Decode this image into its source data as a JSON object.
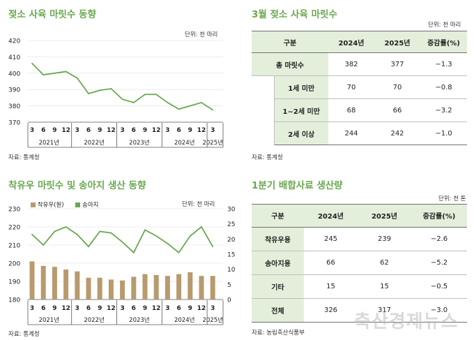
{
  "chart1": {
    "title": "젖소 사육 마릿수 동향",
    "unit": "단위: 천 마리",
    "source": "자료: 통계청",
    "chart_data": {
      "type": "line",
      "x_ticks": [
        "3",
        "6",
        "9",
        "12",
        "3",
        "6",
        "9",
        "12",
        "3",
        "6",
        "9",
        "12",
        "3",
        "6",
        "9",
        "12",
        "3"
      ],
      "year_labels": [
        "2021년",
        "2022년",
        "2023년",
        "2024년",
        "2025년"
      ],
      "year_groups": [
        4,
        4,
        4,
        4,
        1
      ],
      "ylim": [
        370,
        420
      ],
      "y_ticks": [
        370,
        380,
        390,
        400,
        410,
        420
      ],
      "values": [
        406,
        399,
        400,
        401,
        397,
        387.5,
        389.5,
        390.5,
        384,
        382,
        387,
        387,
        382,
        378,
        380,
        382,
        377.5
      ],
      "color": "#6aa84f"
    }
  },
  "chart2": {
    "title": "착유우 마릿수 및 송아지 생산 동향",
    "unit": "단위: 천 마리",
    "source": "자료: 통계청",
    "legend": [
      "착유우(원)",
      "송아지"
    ],
    "chart_data": {
      "type": "bar",
      "x_ticks": [
        "3",
        "6",
        "9",
        "12",
        "3",
        "6",
        "9",
        "12",
        "3",
        "6",
        "9",
        "12",
        "3",
        "6",
        "9",
        "12",
        "3"
      ],
      "year_labels": [
        "2021년",
        "2022년",
        "2023년",
        "2024년",
        "2025년"
      ],
      "year_groups": [
        4,
        4,
        4,
        4,
        1
      ],
      "left_ylim": [
        180,
        230
      ],
      "left_y_ticks": [
        180,
        190,
        200,
        210,
        220,
        230
      ],
      "right_ylim": [
        0,
        30
      ],
      "right_y_ticks": [
        0,
        5,
        10,
        15,
        20,
        25,
        30
      ],
      "series": [
        {
          "name": "착유우(원)",
          "type": "bar",
          "axis": "left",
          "color": "#b89a6e",
          "values": [
            201,
            198.5,
            198,
            196.5,
            195.5,
            192,
            192,
            191,
            190.5,
            192.5,
            194,
            193.5,
            193,
            194,
            195,
            193,
            193
          ]
        },
        {
          "name": "송아지",
          "type": "line",
          "axis": "right",
          "color": "#6aa84f",
          "values": [
            21.5,
            18,
            22.5,
            24,
            21.5,
            17.5,
            22.5,
            22,
            19,
            15.5,
            23,
            21,
            18.5,
            15.5,
            21,
            24,
            17.5
          ]
        }
      ]
    }
  },
  "table1": {
    "title": "3월 젖소 사육 마릿수",
    "unit": "단위: 천 마리",
    "source": "자료: 통계청",
    "headers": [
      "구분",
      "2024년",
      "2025년",
      "증감률(%)"
    ],
    "rows": [
      [
        "총 마릿수",
        "382",
        "377",
        "−1.3"
      ],
      [
        "1세 미만",
        "70",
        "70",
        "−0.8"
      ],
      [
        "1~2세 미만",
        "68",
        "66",
        "−3.2"
      ],
      [
        "2세 이상",
        "244",
        "242",
        "−1.0"
      ]
    ]
  },
  "table2": {
    "title": "1분기 배합사료 생산량",
    "unit": "단위: 천 톤",
    "source": "자료: 농림축산식품부",
    "headers": [
      "구분",
      "2024년",
      "2025년",
      "증감률(%)"
    ],
    "rows": [
      [
        "착유우용",
        "245",
        "239",
        "−2.6"
      ],
      [
        "송아지용",
        "66",
        "62",
        "−5.2"
      ],
      [
        "기타",
        "15",
        "15",
        "−0.5"
      ],
      [
        "전체",
        "326",
        "317",
        "−3.0"
      ]
    ]
  },
  "watermark": "축산경제뉴스"
}
